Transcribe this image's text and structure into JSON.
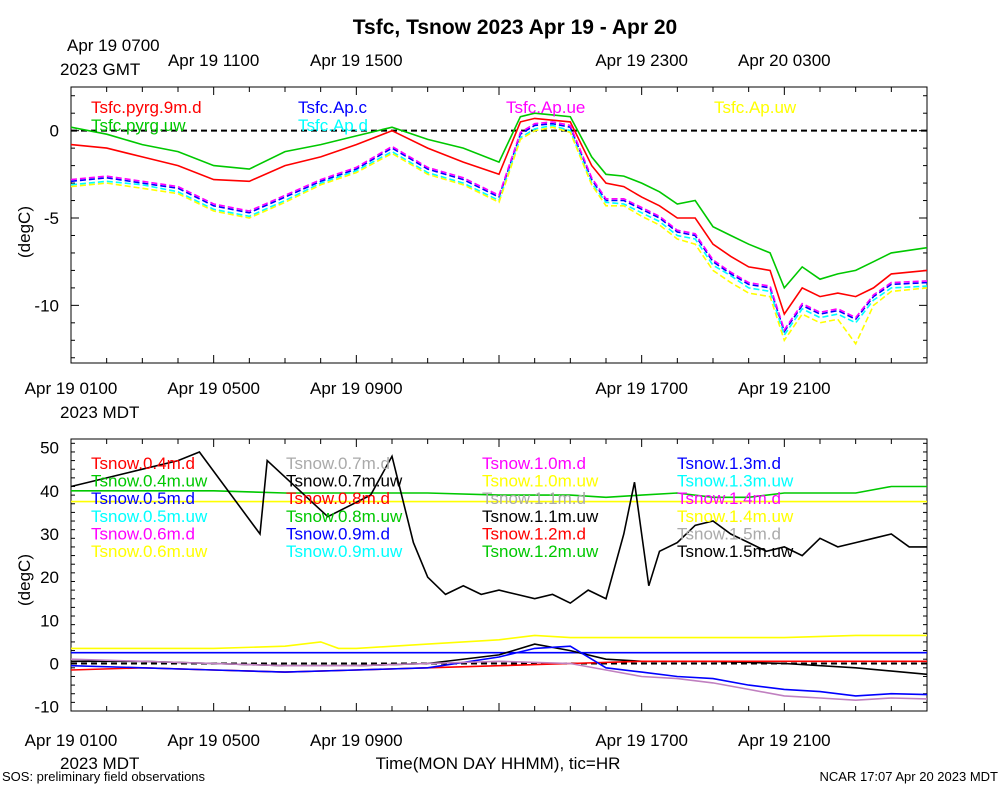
{
  "title": "Tsfc, Tsnow 2023 Apr 19 - Apr 20",
  "footer": {
    "left": "SOS: preliminary field observations",
    "right": "NCAR 17:07 Apr 20 2023 MDT"
  },
  "xlabel": "Time(MON DAY HHMM), tic=HR",
  "gmt_date_label": "Apr 19 0700",
  "gmt_tz_label": "2023 GMT",
  "mdt_tz_label": "2023 MDT",
  "gmt_ticks": [
    {
      "x": 4,
      "label": "Apr 19 1100"
    },
    {
      "x": 8,
      "label": "Apr 19 1500"
    },
    {
      "x": 16,
      "label": "Apr 19 2300"
    },
    {
      "x": 20,
      "label": "Apr 20 0300"
    }
  ],
  "mdt_ticks": [
    {
      "x": 0,
      "label": "Apr 19 0100"
    },
    {
      "x": 4,
      "label": "Apr 19 0500"
    },
    {
      "x": 8,
      "label": "Apr 19 0900"
    },
    {
      "x": 16,
      "label": "Apr 19 1700"
    },
    {
      "x": 20,
      "label": "Apr 19 2100"
    }
  ],
  "colors": {
    "red": "#ff0000",
    "green": "#00c800",
    "blue": "#0000ff",
    "cyan": "#00ffff",
    "magenta": "#ff00ff",
    "yellow": "#ffff00",
    "black": "#000000",
    "gray": "#aaaaaa",
    "plum": "#c080c0"
  },
  "chart_data": [
    {
      "type": "line",
      "name": "Tsfc",
      "xlim": [
        0,
        24
      ],
      "ylim": [
        -13.3,
        2.5
      ],
      "ylabel": "(degC)",
      "yticks": [
        0,
        -5,
        -10
      ],
      "zero_line": true,
      "legend": [
        {
          "name": "Tsfc.pyrg.9m.d",
          "color": "#ff0000"
        },
        {
          "name": "Tsfc.Ap.c",
          "color": "#0000ff"
        },
        {
          "name": "Tsfc.Ap.ue",
          "color": "#ff00ff"
        },
        {
          "name": "Tsfc.Ap.uw",
          "color": "#ffff00"
        },
        {
          "name": "Tsfc.pyrg.uw",
          "color": "#00c800"
        },
        {
          "name": "Tsfc.Ap.d",
          "color": "#00ffff"
        }
      ],
      "series": [
        {
          "name": "Tsfc.pyrg.uw",
          "color": "#00c800",
          "dashed": false,
          "x": [
            0,
            1,
            2,
            3,
            4,
            5,
            6,
            7,
            8,
            9,
            10,
            11,
            12,
            12.6,
            13.0,
            13.5,
            14.0,
            14.6,
            15,
            15.5,
            16,
            16.5,
            17,
            17.5,
            18,
            18.5,
            19,
            19.6,
            20,
            20.5,
            21,
            21.5,
            22,
            22.5,
            23,
            24
          ],
          "y": [
            0.2,
            -0.2,
            -0.8,
            -1.2,
            -2.0,
            -2.2,
            -1.2,
            -0.8,
            -0.3,
            0.2,
            -0.5,
            -1.0,
            -1.8,
            0.8,
            1.0,
            0.9,
            0.8,
            -1.5,
            -2.5,
            -2.6,
            -3.0,
            -3.5,
            -4.2,
            -4.0,
            -5.5,
            -6.0,
            -6.5,
            -7.0,
            -9.0,
            -7.8,
            -8.5,
            -8.2,
            -8.0,
            -7.5,
            -7.0,
            -6.7
          ]
        },
        {
          "name": "Tsfc.pyrg.9m.d",
          "color": "#ff0000",
          "dashed": false,
          "x": [
            0,
            1,
            2,
            3,
            4,
            5,
            6,
            7,
            8,
            9,
            10,
            11,
            12,
            12.6,
            13.0,
            13.5,
            14.0,
            14.6,
            15,
            15.5,
            16,
            16.5,
            17,
            17.5,
            18,
            18.5,
            19,
            19.6,
            20,
            20.5,
            21,
            21.5,
            22,
            22.5,
            23,
            24
          ],
          "y": [
            -0.8,
            -1.0,
            -1.5,
            -2.0,
            -2.8,
            -2.9,
            -2.0,
            -1.5,
            -0.8,
            0.0,
            -1.0,
            -1.8,
            -2.5,
            0.5,
            0.7,
            0.6,
            0.5,
            -2.0,
            -3.0,
            -3.2,
            -3.8,
            -4.3,
            -5.0,
            -5.0,
            -6.5,
            -7.2,
            -7.8,
            -8.0,
            -10.5,
            -9.0,
            -9.5,
            -9.3,
            -9.5,
            -9.0,
            -8.2,
            -8.0
          ]
        },
        {
          "name": "Tsfc.Ap.c",
          "color": "#0000ff",
          "dashed": true,
          "x": [
            0,
            1,
            2,
            3,
            4,
            5,
            6,
            7,
            8,
            9,
            10,
            11,
            12,
            12.6,
            13.0,
            13.5,
            14.0,
            14.6,
            15,
            15.5,
            16,
            16.5,
            17,
            17.5,
            18,
            18.5,
            19,
            19.6,
            20,
            20.5,
            21,
            21.5,
            22,
            22.5,
            23,
            24
          ],
          "y": [
            -2.9,
            -2.7,
            -3.0,
            -3.3,
            -4.3,
            -4.7,
            -3.8,
            -2.9,
            -2.2,
            -1.0,
            -2.2,
            -2.8,
            -3.8,
            -0.2,
            0.3,
            0.4,
            0.2,
            -2.8,
            -4.0,
            -4.0,
            -4.5,
            -5.0,
            -5.8,
            -6.0,
            -7.5,
            -8.2,
            -8.8,
            -9.0,
            -11.5,
            -10.0,
            -10.5,
            -10.3,
            -10.8,
            -9.5,
            -8.8,
            -8.7
          ]
        },
        {
          "name": "Tsfc.Ap.d",
          "color": "#00ffff",
          "dashed": true,
          "x": [
            0,
            1,
            2,
            3,
            4,
            5,
            6,
            7,
            8,
            9,
            10,
            11,
            12,
            12.6,
            13.0,
            13.5,
            14.0,
            14.6,
            15,
            15.5,
            16,
            16.5,
            17,
            17.5,
            18,
            18.5,
            19,
            19.6,
            20,
            20.5,
            21,
            21.5,
            22,
            22.5,
            23,
            24
          ],
          "y": [
            -3.1,
            -2.9,
            -3.1,
            -3.5,
            -4.5,
            -4.9,
            -4.0,
            -3.0,
            -2.3,
            -1.2,
            -2.4,
            -3.0,
            -4.0,
            -0.4,
            0.1,
            0.3,
            0.0,
            -3.0,
            -4.1,
            -4.2,
            -4.7,
            -5.2,
            -6.0,
            -6.2,
            -7.7,
            -8.3,
            -9.0,
            -9.2,
            -11.7,
            -10.2,
            -10.7,
            -10.5,
            -11.0,
            -9.7,
            -9.0,
            -8.9
          ]
        },
        {
          "name": "Tsfc.Ap.ue",
          "color": "#ff00ff",
          "dashed": true,
          "x": [
            0,
            1,
            2,
            3,
            4,
            5,
            6,
            7,
            8,
            9,
            10,
            11,
            12,
            12.6,
            13.0,
            13.5,
            14.0,
            14.6,
            15,
            15.5,
            16,
            16.5,
            17,
            17.5,
            18,
            18.5,
            19,
            19.6,
            20,
            20.5,
            21,
            21.5,
            22,
            22.5,
            23,
            24
          ],
          "y": [
            -2.8,
            -2.6,
            -2.9,
            -3.2,
            -4.2,
            -4.6,
            -3.7,
            -2.8,
            -2.1,
            -0.9,
            -2.1,
            -2.7,
            -3.7,
            -0.1,
            0.4,
            0.5,
            0.3,
            -2.7,
            -3.9,
            -3.9,
            -4.4,
            -4.9,
            -5.7,
            -5.9,
            -7.4,
            -8.1,
            -8.7,
            -8.9,
            -11.4,
            -9.9,
            -10.4,
            -10.2,
            -10.7,
            -9.4,
            -8.7,
            -8.6
          ]
        },
        {
          "name": "Tsfc.Ap.uw",
          "color": "#ffff00",
          "dashed": true,
          "x": [
            0,
            1,
            2,
            3,
            4,
            5,
            6,
            7,
            8,
            9,
            10,
            11,
            12,
            12.6,
            13.0,
            13.5,
            14.0,
            14.6,
            15,
            15.5,
            16,
            16.5,
            17,
            17.5,
            18,
            18.5,
            19,
            19.6,
            20,
            20.5,
            21,
            21.5,
            22,
            22.5,
            23,
            24
          ],
          "y": [
            -3.2,
            -3.0,
            -3.3,
            -3.6,
            -4.6,
            -5.0,
            -4.1,
            -3.1,
            -2.4,
            -1.3,
            -2.5,
            -3.1,
            -4.1,
            -0.5,
            0.0,
            0.2,
            -0.1,
            -3.1,
            -4.3,
            -4.3,
            -4.9,
            -5.4,
            -6.2,
            -6.5,
            -8.0,
            -8.7,
            -9.3,
            -9.5,
            -12.0,
            -10.5,
            -11.0,
            -10.8,
            -12.2,
            -10.0,
            -9.2,
            -9.0
          ]
        }
      ]
    },
    {
      "type": "line",
      "name": "Tsnow",
      "xlim": [
        0,
        24
      ],
      "ylim": [
        -11,
        52
      ],
      "ylabel": "(degC)",
      "yticks": [
        50,
        40,
        30,
        20,
        10,
        0,
        -10
      ],
      "zero_line": true,
      "legend": [
        {
          "name": "Tsnow.0.4m.d",
          "color": "#ff0000"
        },
        {
          "name": "Tsnow.0.7m.d",
          "color": "#aaaaaa"
        },
        {
          "name": "Tsnow.1.0m.d",
          "color": "#ff00ff"
        },
        {
          "name": "Tsnow.1.3m.d",
          "color": "#0000ff"
        },
        {
          "name": "Tsnow.0.4m.uw",
          "color": "#00c800"
        },
        {
          "name": "Tsnow.0.7m.uw",
          "color": "#000000"
        },
        {
          "name": "Tsnow.1.0m.uw",
          "color": "#ffff00"
        },
        {
          "name": "Tsnow.1.3m.uw",
          "color": "#00ffff"
        },
        {
          "name": "Tsnow.0.5m.d",
          "color": "#0000ff"
        },
        {
          "name": "Tsnow.0.8m.d",
          "color": "#ff0000"
        },
        {
          "name": "Tsnow.1.1m.d",
          "color": "#aaaaaa"
        },
        {
          "name": "Tsnow.1.4m.d",
          "color": "#ff00ff"
        },
        {
          "name": "Tsnow.0.5m.uw",
          "color": "#00ffff"
        },
        {
          "name": "Tsnow.0.8m.uw",
          "color": "#00c800"
        },
        {
          "name": "Tsnow.1.1m.uw",
          "color": "#000000"
        },
        {
          "name": "Tsnow.1.4m.uw",
          "color": "#ffff00"
        },
        {
          "name": "Tsnow.0.6m.d",
          "color": "#ff00ff"
        },
        {
          "name": "Tsnow.0.9m.d",
          "color": "#0000ff"
        },
        {
          "name": "Tsnow.1.2m.d",
          "color": "#ff0000"
        },
        {
          "name": "Tsnow.1.5m.d",
          "color": "#aaaaaa"
        },
        {
          "name": "Tsnow.0.6m.uw",
          "color": "#ffff00"
        },
        {
          "name": "Tsnow.0.9m.uw",
          "color": "#00ffff"
        },
        {
          "name": "Tsnow.1.2m.uw",
          "color": "#00c800"
        },
        {
          "name": "Tsnow.1.5m.uw",
          "color": "#000000"
        }
      ],
      "series": [
        {
          "name": "Tsnow.0.4m.uw",
          "color": "#00c800",
          "x": [
            0,
            2,
            4,
            6,
            8,
            10,
            12,
            14,
            15,
            16,
            17,
            18,
            19,
            20,
            21,
            22,
            23,
            24
          ],
          "y": [
            40,
            40,
            40,
            39.5,
            39.5,
            39.5,
            39,
            39,
            38.5,
            39,
            39.5,
            38.5,
            38.5,
            39.5,
            39.5,
            39.5,
            41,
            41
          ]
        },
        {
          "name": "Tsnow.1.0m.uw",
          "color": "#ffff00",
          "x": [
            0,
            24
          ],
          "y": [
            37.5,
            37.5
          ]
        },
        {
          "name": "Tsnow.1.5m.uw",
          "color": "#000000",
          "x": [
            0,
            1,
            2,
            3,
            3.6,
            5.3,
            5.5,
            7.2,
            8.4,
            9,
            9.6,
            10,
            10.5,
            11,
            11.5,
            12,
            12.5,
            13,
            13.5,
            14,
            14.5,
            15,
            15.5,
            15.8,
            16.2,
            16.5,
            17,
            17.5,
            18,
            18.5,
            19,
            19.5,
            20,
            20.5,
            21,
            21.5,
            22,
            22.5,
            23,
            23.5,
            24
          ],
          "y": [
            41,
            43,
            45,
            47,
            49,
            30,
            47,
            34,
            39,
            48,
            28,
            20,
            16,
            18,
            16,
            17,
            16,
            15,
            16,
            14,
            17,
            15,
            30,
            42,
            18,
            26,
            28,
            32,
            33,
            30,
            28,
            26,
            27,
            25,
            29,
            27,
            28,
            29,
            30,
            27,
            27
          ]
        },
        {
          "name": "Tsnow.0.6m.uw",
          "color": "#ffff00",
          "x": [
            0,
            2,
            4,
            6,
            7,
            7.5,
            8,
            10,
            12,
            13,
            14,
            16,
            18,
            20,
            22,
            24
          ],
          "y": [
            3.5,
            3.5,
            3.5,
            4,
            5,
            3.5,
            3.5,
            4.5,
            5.5,
            6.5,
            6,
            6,
            6,
            6,
            6.5,
            6.5
          ]
        },
        {
          "name": "Tsnow.1.3m.d",
          "color": "#0000ff",
          "x": [
            0,
            24
          ],
          "y": [
            2.5,
            2.5
          ]
        },
        {
          "name": "Tsnow.1.1m.uw",
          "color": "#000000",
          "x": [
            0,
            2,
            4,
            6,
            8,
            10,
            12,
            13,
            14,
            15,
            16,
            18,
            20,
            22,
            24
          ],
          "y": [
            0.5,
            0.5,
            0,
            -0.5,
            -0.5,
            0,
            2,
            4.5,
            3,
            1,
            0.5,
            0.5,
            0,
            -1,
            -2.5
          ]
        },
        {
          "name": "Tsnow.0.4m.d",
          "color": "#ff0000",
          "x": [
            0,
            2,
            4,
            6,
            8,
            10,
            12,
            14,
            16,
            18,
            20,
            22,
            24
          ],
          "y": [
            -1.5,
            -1,
            -1.5,
            -2,
            -1.5,
            -1,
            -0.5,
            0,
            0.5,
            0.5,
            0.5,
            0.5,
            0.5
          ]
        },
        {
          "name": "Tsnow.0.5m.d",
          "color": "#0000ff",
          "x": [
            0,
            2,
            4,
            6,
            8,
            10,
            12,
            13,
            14,
            15,
            16,
            17,
            18,
            19,
            20,
            21,
            22,
            23,
            24
          ],
          "y": [
            -0.5,
            -1,
            -1.5,
            -2,
            -1.5,
            -1,
            1.5,
            3.5,
            4,
            -1,
            -2,
            -3,
            -3.5,
            -5,
            -6,
            -6.5,
            -7.5,
            -7,
            -7.2
          ]
        },
        {
          "name": "Tsnow.0.6m.d",
          "color": "#c080c0",
          "x": [
            0,
            2,
            4,
            6,
            8,
            10,
            12,
            14,
            15,
            16,
            17,
            18,
            19,
            20,
            21,
            22,
            23,
            24
          ],
          "y": [
            1,
            0.5,
            0,
            -0.5,
            -0.5,
            0,
            0.5,
            0,
            -1.5,
            -3,
            -3.5,
            -4.5,
            -6,
            -7.5,
            -8,
            -8.5,
            -8,
            -8.2
          ]
        }
      ]
    }
  ]
}
